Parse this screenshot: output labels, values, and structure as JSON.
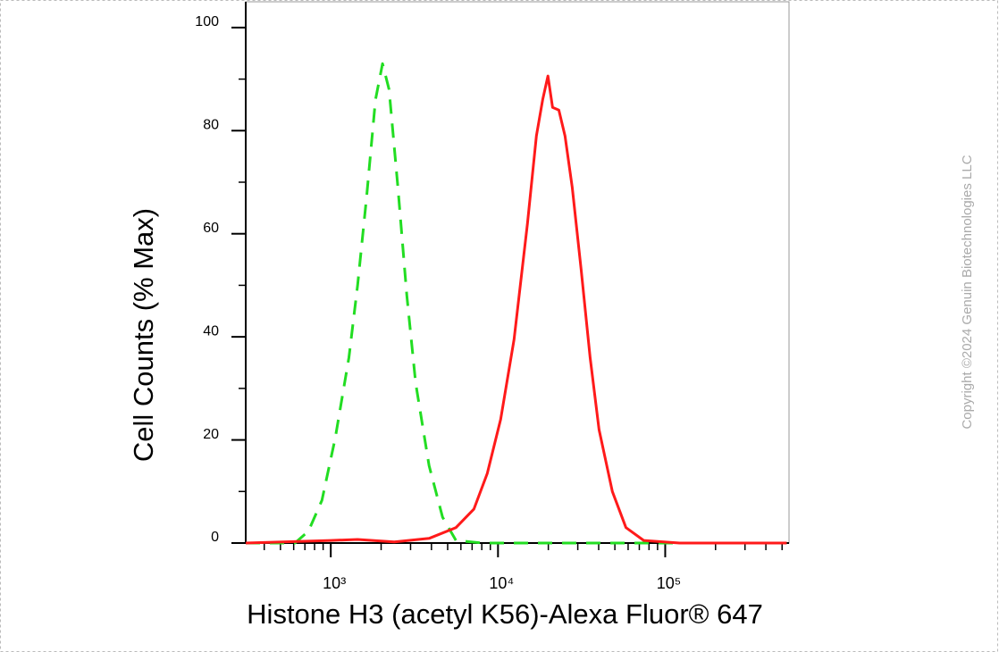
{
  "chart_data": {
    "type": "line",
    "xlabel": "Histone H3 (acetyl K56)-Alexa Fluor® 647",
    "ylabel": "Cell Counts (% Max)",
    "watermark": "Copyright ©2024 Genuin Biotechnologies LLC",
    "xscale": "log",
    "xlim": [
      310,
      550000
    ],
    "ylim": [
      0,
      105
    ],
    "xticks": [
      {
        "value": 1000,
        "label": "10³"
      },
      {
        "value": 10000,
        "label": "10⁴"
      },
      {
        "value": 100000,
        "label": "10⁵"
      }
    ],
    "xminorticks": [
      400,
      500,
      600,
      700,
      800,
      900,
      2000,
      3000,
      4000,
      5000,
      6000,
      7000,
      8000,
      9000,
      20000,
      30000,
      40000,
      50000,
      60000,
      70000,
      80000,
      90000,
      200000,
      300000,
      400000,
      500000
    ],
    "yticks": [
      0,
      20,
      40,
      60,
      80,
      100
    ],
    "yminorticks": [
      10,
      30,
      50,
      70,
      90
    ],
    "series": [
      {
        "color": "#22dd22",
        "line_style": "dashed",
        "x": [
          310,
          611,
          735,
          885,
          1064,
          1284,
          1447,
          1637,
          1850,
          2040,
          2230,
          2520,
          2850,
          3220,
          3870,
          4660,
          5610,
          8100,
          533000
        ],
        "values": [
          0,
          0,
          2.3,
          8.3,
          20.4,
          36,
          50,
          67,
          86,
          93,
          88,
          69,
          48,
          31,
          15,
          5,
          0.5,
          0,
          0
        ]
      },
      {
        "color": "#ff1a1a",
        "line_style": "solid",
        "x": [
          310,
          1000,
          1447,
          2400,
          3870,
          5610,
          7180,
          8630,
          10380,
          12470,
          15000,
          16970,
          18500,
          19900,
          21200,
          23100,
          25170,
          27790,
          31430,
          35540,
          40200,
          48300,
          58200,
          74400,
          121800,
          533000
        ],
        "values": [
          0,
          0.5,
          0.7,
          0.2,
          0.9,
          3,
          6.6,
          13.5,
          24,
          39.5,
          62,
          79,
          86,
          90.6,
          84.5,
          84,
          79,
          69,
          53,
          36,
          22,
          10,
          3,
          0.5,
          0,
          0
        ]
      }
    ]
  }
}
